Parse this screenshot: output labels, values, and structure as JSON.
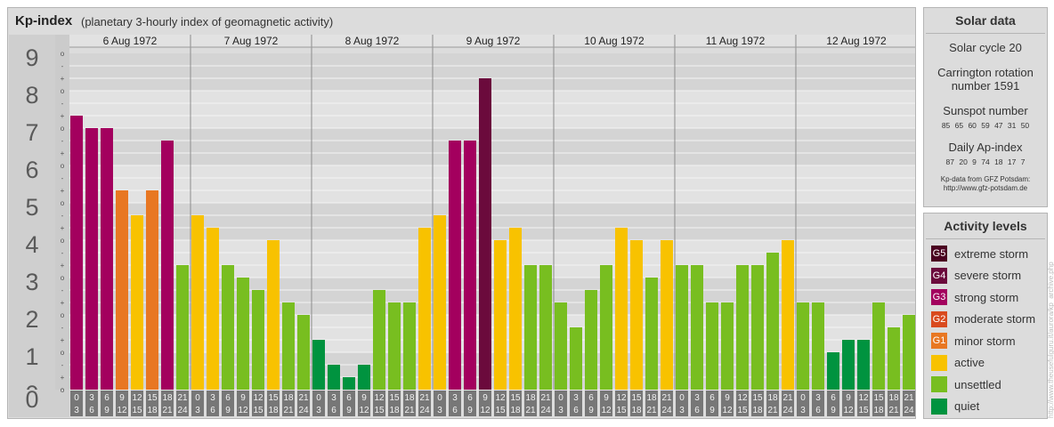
{
  "header": {
    "title": "Kp-index",
    "subtitle": "(planetary 3-hourly index of geomagnetic activity)"
  },
  "colors": {
    "quiet": "#00933f",
    "unsettled": "#78be20",
    "active": "#f8c200",
    "g1": "#e87722",
    "g2": "#d94a1e",
    "g3": "#a3005e",
    "g4": "#6b0a3c",
    "g5": "#4a0020"
  },
  "chart_data": {
    "type": "bar",
    "title": "Kp-index",
    "subtitle": "(planetary 3-hourly index of geomagnetic activity)",
    "ylim": [
      0,
      9
    ],
    "y_ticks": [
      "0",
      "1",
      "2",
      "3",
      "4",
      "5",
      "6",
      "7",
      "8",
      "9"
    ],
    "minor_tick_labels": [
      "o",
      "+",
      "-"
    ],
    "days": [
      "6 Aug 1972",
      "7 Aug 1972",
      "8 Aug 1972",
      "9 Aug 1972",
      "10 Aug 1972",
      "11 Aug 1972",
      "12 Aug 1972"
    ],
    "time_bins_top": [
      "0",
      "3",
      "6",
      "9",
      "12",
      "15",
      "18",
      "21"
    ],
    "time_bins_bottom": [
      "3",
      "6",
      "9",
      "12",
      "15",
      "18",
      "21",
      "24"
    ],
    "series": [
      {
        "values": [
          7.333,
          7.0,
          7.0,
          5.333,
          4.667,
          5.333,
          6.667,
          3.333,
          4.667,
          4.333,
          3.333,
          3.0,
          2.667,
          4.0,
          2.333,
          2.0,
          1.333,
          0.667,
          0.333,
          0.667,
          2.667,
          2.333,
          2.333,
          4.333,
          4.667,
          6.667,
          6.667,
          8.333,
          4.0,
          4.333,
          3.333,
          3.333,
          2.333,
          1.667,
          2.667,
          3.333,
          4.333,
          4.0,
          3.0,
          4.0,
          3.333,
          3.333,
          2.333,
          2.333,
          3.333,
          3.333,
          3.667,
          4.0,
          2.333,
          2.333,
          1.0,
          1.333,
          1.333,
          2.333,
          1.667,
          2.0
        ]
      }
    ],
    "grid": true
  },
  "solar": {
    "title": "Solar data",
    "cycle": "Solar cycle 20",
    "carrington_1": "Carrington rotation",
    "carrington_2": "number 1591",
    "sunspot_title": "Sunspot number",
    "sunspot_values": "85 65 60 59 47 31 50",
    "ap_title": "Daily Ap-index",
    "ap_values": "87 20 9 74 18 17 7",
    "source_1": "Kp-data from GFZ Potsdam:",
    "source_2": "http://www.gfz-potsdam.de"
  },
  "activity": {
    "title": "Activity levels",
    "items": [
      {
        "badge": "G5",
        "label": "extreme storm",
        "color": "#4a0020"
      },
      {
        "badge": "G4",
        "label": "severe storm",
        "color": "#6b0a3c"
      },
      {
        "badge": "G3",
        "label": "strong storm",
        "color": "#a3005e"
      },
      {
        "badge": "G2",
        "label": "moderate storm",
        "color": "#d94a1e"
      },
      {
        "badge": "G1",
        "label": "minor storm",
        "color": "#e87722"
      },
      {
        "badge": "",
        "label": "active",
        "color": "#f8c200"
      },
      {
        "badge": "",
        "label": "unsettled",
        "color": "#78be20"
      },
      {
        "badge": "",
        "label": "quiet",
        "color": "#00933f"
      }
    ]
  },
  "credit": "http://www.theusefulguru.it/aurora/kp_archive.php"
}
